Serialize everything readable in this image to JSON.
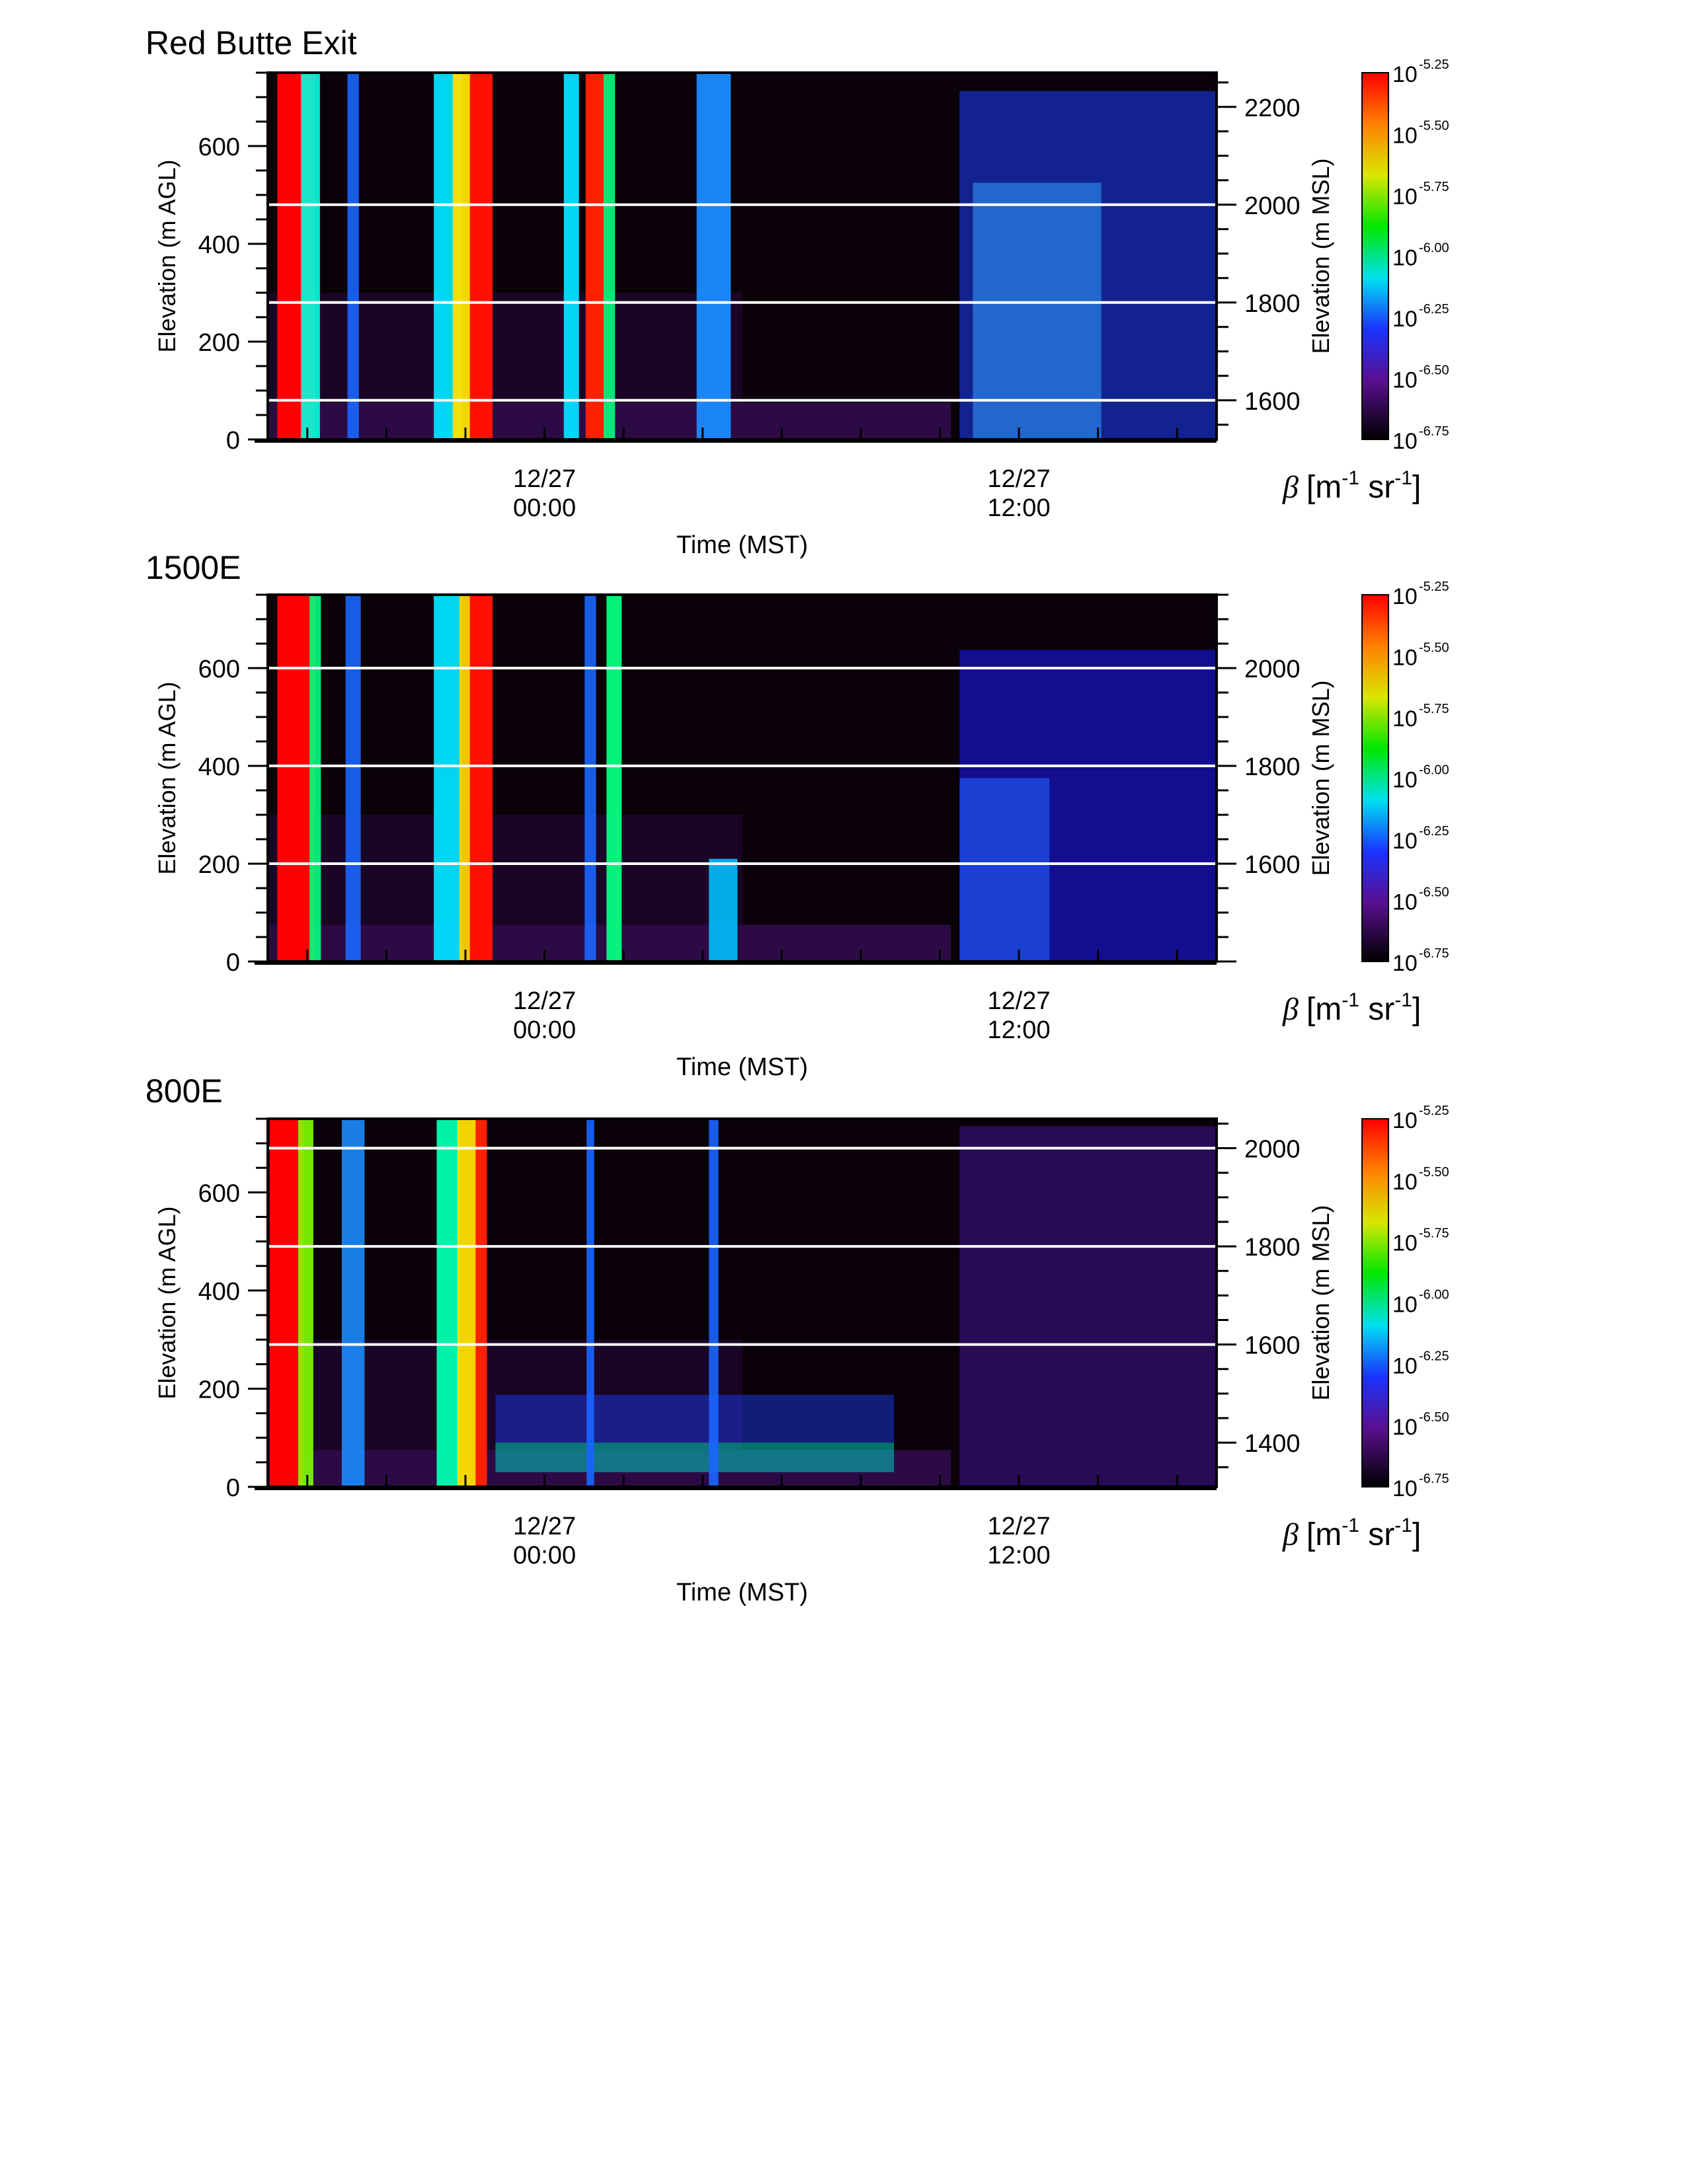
{
  "chart_data": [
    {
      "type": "heatmap",
      "title": "Red Butte Exit",
      "xlabel": "Time (MST)",
      "ylabel": "Elevation (m AGL)",
      "ylabel_right": "Elevation (m MSL)",
      "x_range_hours_rel_12_27_0000": [
        -7,
        17
      ],
      "ylim": [
        0,
        750
      ],
      "yticks": [
        "0",
        "200",
        "400",
        "600"
      ],
      "yticks_right": [
        "1600",
        "1800",
        "2000",
        "2200"
      ],
      "xticks": [
        {
          "date": "12/27",
          "time": "00:00"
        },
        {
          "date": "12/27",
          "time": "12:00"
        }
      ],
      "msl_offset_m": 1520,
      "reference_lines_msl": [
        1600,
        1800,
        2000
      ],
      "colorbar": {
        "label_symbol": "β",
        "label_units_open": "[m",
        "label_units_exp1": "-1",
        "label_units_mid": " sr",
        "label_units_exp2": "-1",
        "label_units_close": "]",
        "base": "10",
        "exponents": [
          "-5.25",
          "-5.50",
          "-5.75",
          "-6.00",
          "-6.25",
          "-6.50",
          "-6.75"
        ]
      }
    },
    {
      "type": "heatmap",
      "title": "1500E",
      "xlabel": "Time (MST)",
      "ylabel": "Elevation (m AGL)",
      "ylabel_right": "Elevation (m MSL)",
      "x_range_hours_rel_12_27_0000": [
        -7,
        17
      ],
      "ylim": [
        0,
        750
      ],
      "yticks": [
        "0",
        "200",
        "400",
        "600"
      ],
      "yticks_right": [
        "1600",
        "1800",
        "2000"
      ],
      "xticks": [
        {
          "date": "12/27",
          "time": "00:00"
        },
        {
          "date": "12/27",
          "time": "12:00"
        }
      ],
      "msl_offset_m": 1400,
      "reference_lines_msl": [
        1600,
        1800,
        2000
      ],
      "colorbar": {
        "label_symbol": "β",
        "label_units_open": "[m",
        "label_units_exp1": "-1",
        "label_units_mid": " sr",
        "label_units_exp2": "-1",
        "label_units_close": "]",
        "base": "10",
        "exponents": [
          "-5.25",
          "-5.50",
          "-5.75",
          "-6.00",
          "-6.25",
          "-6.50",
          "-6.75"
        ]
      }
    },
    {
      "type": "heatmap",
      "title": "800E",
      "xlabel": "Time (MST)",
      "ylabel": "Elevation (m AGL)",
      "ylabel_right": "Elevation (m MSL)",
      "x_range_hours_rel_12_27_0000": [
        -7,
        17
      ],
      "ylim": [
        0,
        750
      ],
      "yticks": [
        "0",
        "200",
        "400",
        "600"
      ],
      "yticks_right": [
        "1400",
        "1600",
        "1800",
        "2000"
      ],
      "xticks": [
        {
          "date": "12/27",
          "time": "00:00"
        },
        {
          "date": "12/27",
          "time": "12:00"
        }
      ],
      "msl_offset_m": 1310,
      "reference_lines_msl": [
        1600,
        1800,
        2000
      ],
      "colorbar": {
        "label_symbol": "β",
        "label_units_open": "[m",
        "label_units_exp1": "-1",
        "label_units_mid": " sr",
        "label_units_exp2": "-1",
        "label_units_close": "]",
        "base": "10",
        "exponents": [
          "-5.25",
          "-5.50",
          "-5.75",
          "-6.00",
          "-6.25",
          "-6.50",
          "-6.75"
        ]
      }
    }
  ]
}
